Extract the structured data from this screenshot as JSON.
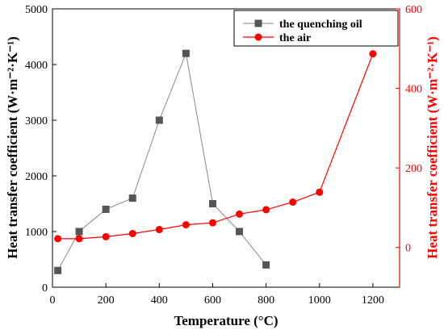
{
  "chart_data": {
    "type": "line",
    "xlabel": "Temperature (°C)",
    "ylabel_left": "Heat transfer coefficient (W·m⁻²·K⁻¹)",
    "ylabel_right": "Heat transfer coefficient (W·m⁻²·K⁻¹)",
    "xlim": [
      0,
      1300
    ],
    "ylim_left": [
      0,
      5000
    ],
    "ylim_right": [
      -100,
      600
    ],
    "x_ticks": [
      "0",
      "200",
      "400",
      "600",
      "800",
      "1000",
      "1200"
    ],
    "y_left_ticks": [
      "0",
      "1000",
      "2000",
      "3000",
      "4000",
      "5000"
    ],
    "y_right_ticks": [
      "0",
      "200",
      "400",
      "600"
    ],
    "grid": false,
    "legend_position": "top-right",
    "series": [
      {
        "name": "the quenching oil",
        "axis": "left",
        "marker": "square",
        "color": "#555555",
        "line_color": "#888888",
        "x": [
          20,
          100,
          200,
          300,
          400,
          500,
          600,
          700,
          800
        ],
        "y": [
          300,
          1000,
          1400,
          1600,
          3000,
          4200,
          1500,
          1000,
          400
        ]
      },
      {
        "name": "the air",
        "axis": "right",
        "marker": "circle",
        "color": "#ff0000",
        "line_color": "#ff0000",
        "x": [
          20,
          100,
          200,
          300,
          400,
          500,
          600,
          700,
          800,
          900,
          1000,
          1200
        ],
        "y": [
          22,
          22,
          27,
          35,
          45,
          57,
          62,
          84,
          95,
          114,
          139,
          487
        ]
      }
    ]
  }
}
